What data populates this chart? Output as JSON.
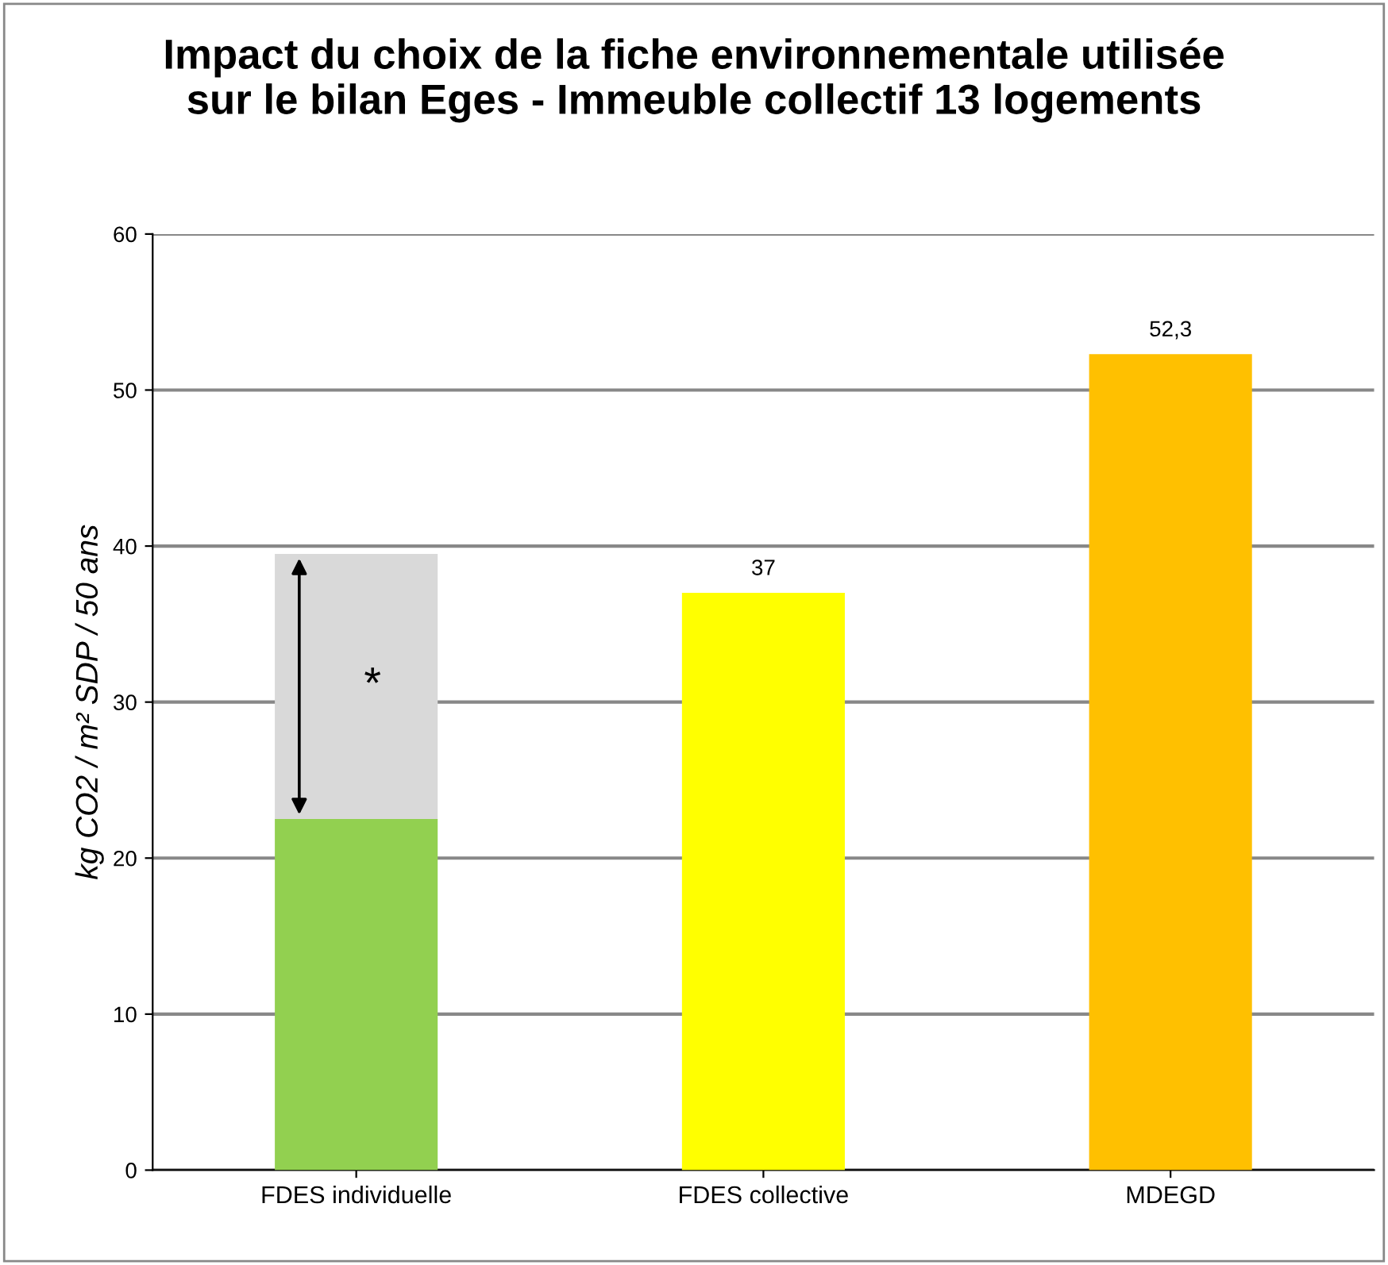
{
  "chart_data": {
    "type": "bar",
    "title": "Impact du choix de la fiche environnementale utilisée\nsur le bilan Eges - Immeuble collectif 13 logements",
    "ylabel": "kg CO2 / m² SDP / 50 ans",
    "categories": [
      "FDES individuelle",
      "FDES collective",
      "MDEGD"
    ],
    "stacked": true,
    "series": [
      {
        "colors": [
          "#92d050",
          "#ffff00",
          "#ffc000"
        ],
        "values": [
          22.5,
          37,
          52.3
        ],
        "value_labels": [
          null,
          "37",
          "52,3"
        ]
      },
      {
        "color": "#d9d9d9",
        "values": [
          17,
          null,
          null
        ]
      }
    ],
    "annotations": [
      "*"
    ],
    "ylim": [
      0,
      60
    ],
    "yticks": [
      0,
      10,
      20,
      30,
      40,
      50,
      60
    ],
    "grid": "y",
    "legend": false
  }
}
